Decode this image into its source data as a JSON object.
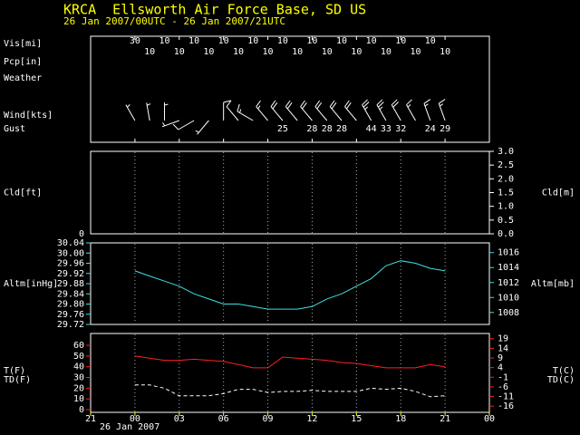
{
  "chart_data": [
    {
      "type": "station",
      "title": "KRCA  Ellsworth Air Force Base, SD US",
      "subtitle": "26 Jan 2007/00UTC - 26 Jan 2007/21UTC",
      "x": [
        0,
        1,
        2,
        3,
        4,
        5,
        6,
        7,
        8,
        9,
        10,
        11,
        12,
        13,
        14,
        15,
        16,
        17,
        18,
        19,
        20,
        21
      ],
      "xlim": [
        -3,
        24
      ],
      "visibility": {
        "label": "Vis[mi]",
        "values": [
          30,
          10,
          10,
          10,
          10,
          10,
          10,
          10,
          10,
          10,
          10,
          10,
          10,
          10,
          10,
          10,
          10,
          10,
          10,
          10,
          10,
          10
        ]
      },
      "precipitation": {
        "label": "Pcp[in]"
      },
      "weather": {
        "label": "Weather"
      },
      "wind": {
        "label": "Wind[kts]",
        "directions": [
          330,
          350,
          360,
          250,
          240,
          220,
          360,
          320,
          300,
          320,
          320,
          320,
          320,
          320,
          320,
          320,
          330,
          330,
          330,
          330,
          340,
          340
        ],
        "speeds": [
          5,
          5,
          8,
          5,
          10,
          5,
          10,
          10,
          15,
          15,
          20,
          20,
          20,
          20,
          20,
          20,
          25,
          25,
          20,
          15,
          15,
          15
        ]
      },
      "gust": {
        "label": "Gust",
        "values": [
          null,
          null,
          null,
          null,
          null,
          null,
          null,
          null,
          null,
          null,
          25,
          null,
          28,
          28,
          28,
          null,
          44,
          33,
          32,
          null,
          24,
          29
        ]
      }
    },
    {
      "type": "cloud",
      "ylabel": "Cld[ft]",
      "yticks": [
        0
      ],
      "y2label": "Cld[m]",
      "y2lim": [
        0,
        3.0
      ],
      "y2ticks": [
        {
          "value": 0,
          "label": "0.0"
        },
        0.5,
        {
          "value": 1,
          "label": "1.0"
        },
        1.5,
        {
          "value": 2,
          "label": "2.0"
        },
        2.5,
        {
          "value": 3,
          "label": "3.0"
        }
      ],
      "xlim": [
        -3,
        24
      ]
    },
    {
      "type": "line",
      "ylabel": "Altm[inHg]",
      "y2label": "Altm[mb]",
      "x": [
        0,
        1,
        2,
        3,
        4,
        5,
        6,
        7,
        8,
        9,
        10,
        11,
        12,
        13,
        14,
        15,
        16,
        17,
        18,
        19,
        20,
        21
      ],
      "xlim": [
        -3,
        24
      ],
      "ylim": [
        29.72,
        30.04
      ],
      "yticks": [
        29.72,
        29.76,
        {
          "value": 29.8,
          "label": "29.80"
        },
        29.84,
        29.88,
        29.92,
        29.96,
        {
          "value": 30,
          "label": "30.00"
        },
        30.04
      ],
      "y2lim": [
        1006.4,
        1017.3
      ],
      "y2ticks": [
        1008,
        1010,
        1012,
        1014,
        1016
      ],
      "color": "#40e0e0",
      "series": [
        {
          "color": "#40e0e0",
          "values": [
            29.93,
            29.91,
            29.89,
            29.87,
            29.84,
            29.82,
            29.8,
            29.8,
            29.79,
            29.78,
            29.78,
            29.78,
            29.79,
            29.82,
            29.84,
            29.87,
            29.9,
            29.95,
            29.97,
            29.96,
            29.94,
            29.93
          ]
        }
      ]
    },
    {
      "type": "line",
      "x": [
        0,
        1,
        2,
        3,
        4,
        5,
        6,
        7,
        8,
        9,
        10,
        11,
        12,
        13,
        14,
        15,
        16,
        17,
        18,
        19,
        20,
        21
      ],
      "xlim": [
        -3,
        24
      ],
      "xticks": [
        {
          "value": -3,
          "label": "21"
        },
        {
          "value": 0,
          "label": "00"
        },
        {
          "value": 3,
          "label": "03"
        },
        {
          "value": 6,
          "label": "06"
        },
        {
          "value": 9,
          "label": "09"
        },
        12,
        15,
        18,
        21,
        {
          "value": 24,
          "label": "00"
        }
      ],
      "date_label": "26 Jan 2007",
      "ylim": [
        -2.5,
        71
      ],
      "yticks": [
        0,
        10,
        20,
        30,
        40,
        50,
        60
      ],
      "y2lim": [
        -19.2,
        21.7
      ],
      "y2ticks": [
        19,
        14,
        9,
        4,
        -1,
        -6,
        -11,
        -16
      ],
      "y2labels": [
        "T(C)",
        "TD(C)"
      ],
      "series": [
        {
          "name": "T(F)",
          "color": "#ff2020",
          "values": [
            50,
            48,
            46,
            46,
            47,
            46,
            45,
            42,
            39,
            39,
            49,
            48,
            47,
            46,
            44,
            43,
            41,
            39,
            39,
            39,
            42,
            40
          ]
        },
        {
          "name": "TD(F)",
          "color": "#ffffff",
          "dashed": true,
          "values": [
            23,
            23,
            20,
            13,
            13,
            13,
            15,
            19,
            19,
            16,
            17,
            17,
            18,
            17,
            17,
            17,
            20,
            19,
            20,
            17,
            12,
            13
          ]
        }
      ]
    }
  ]
}
